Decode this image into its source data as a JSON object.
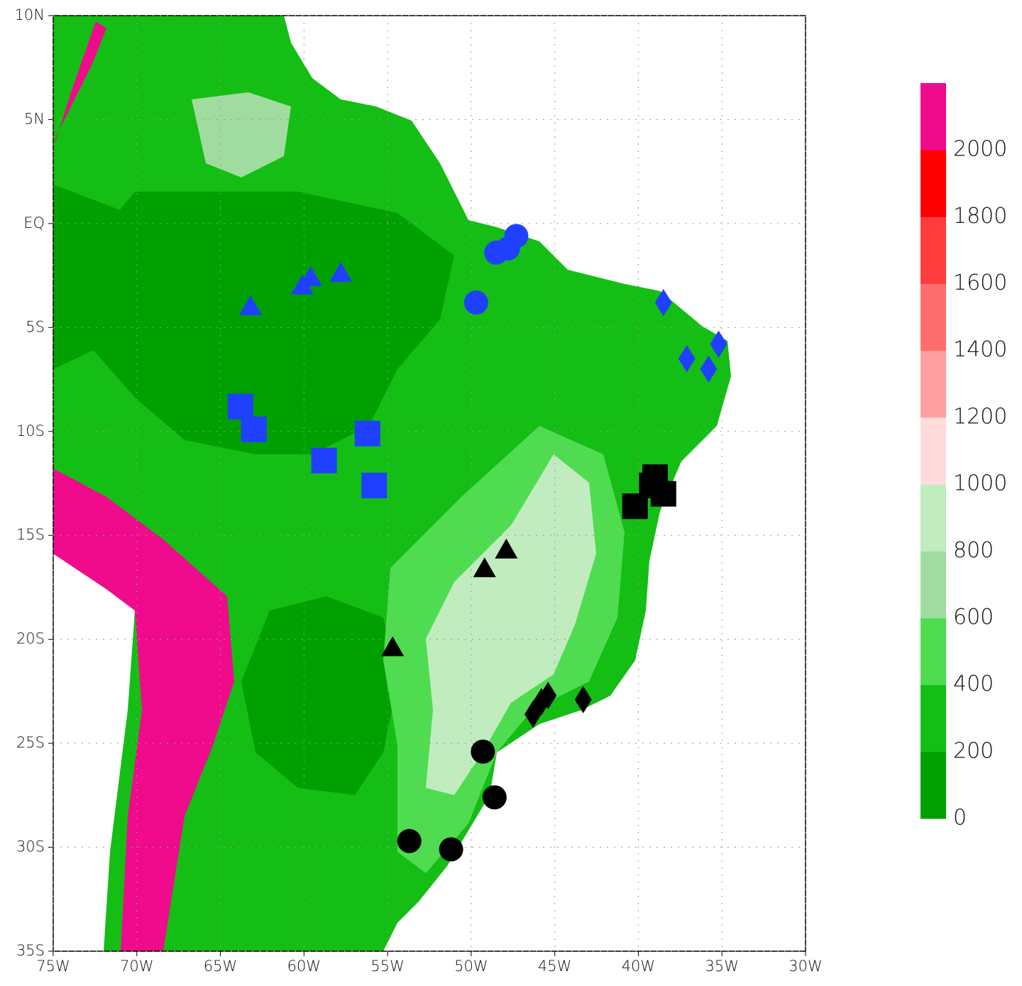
{
  "chart_data": {
    "type": "map",
    "xlim": [
      -75,
      -30
    ],
    "ylim": [
      -35,
      10
    ],
    "xticks": [
      {
        "value": -75,
        "label": "75W"
      },
      {
        "value": -70,
        "label": "70W"
      },
      {
        "value": -65,
        "label": "65W"
      },
      {
        "value": -60,
        "label": "60W"
      },
      {
        "value": -55,
        "label": "55W"
      },
      {
        "value": -50,
        "label": "50W"
      },
      {
        "value": -45,
        "label": "45W"
      },
      {
        "value": -40,
        "label": "40W"
      },
      {
        "value": -35,
        "label": "35W"
      },
      {
        "value": -30,
        "label": "30W"
      }
    ],
    "yticks": [
      {
        "value": 10,
        "label": "10N"
      },
      {
        "value": 5,
        "label": "5N"
      },
      {
        "value": 0,
        "label": "EQ"
      },
      {
        "value": -5,
        "label": "5S"
      },
      {
        "value": -10,
        "label": "10S"
      },
      {
        "value": -15,
        "label": "15S"
      },
      {
        "value": -20,
        "label": "20S"
      },
      {
        "value": -25,
        "label": "25S"
      },
      {
        "value": -30,
        "label": "30S"
      },
      {
        "value": -35,
        "label": "35S"
      }
    ],
    "grid": true,
    "colorbar": {
      "levels": [
        0,
        200,
        400,
        600,
        800,
        1000,
        1200,
        1400,
        1600,
        1800,
        2000
      ],
      "colors": [
        "#00a000",
        "#14be14",
        "#50dc50",
        "#a0dca0",
        "#c0ecc0",
        "#ffdcdc",
        "#ffa0a0",
        "#ff6e6e",
        "#ff3c3c",
        "#ff0000",
        "#f00a8c"
      ]
    },
    "series": [
      {
        "marker": "circle",
        "color": "#2040ff",
        "x": [
          -47.3,
          -47.8,
          -48.5,
          -49.7
        ],
        "y": [
          -0.6,
          -1.2,
          -1.4,
          -3.8
        ]
      },
      {
        "marker": "triangle",
        "color": "#2040ff",
        "x": [
          -63.2,
          -60.1,
          -59.6,
          -57.8
        ],
        "y": [
          -4.0,
          -3.0,
          -2.6,
          -2.4
        ]
      },
      {
        "marker": "square",
        "color": "#2040ff",
        "x": [
          -63.8,
          -63.0,
          -56.2,
          -58.8,
          -55.8
        ],
        "y": [
          -8.8,
          -9.9,
          -10.1,
          -11.4,
          -12.6
        ]
      },
      {
        "marker": "diamond",
        "color": "#2040ff",
        "x": [
          -38.5,
          -37.1,
          -35.2,
          -35.8
        ],
        "y": [
          -3.8,
          -6.5,
          -5.8,
          -7.0
        ]
      },
      {
        "marker": "square",
        "color": "#000000",
        "x": [
          -39.0,
          -38.5,
          -40.2,
          -39.2
        ],
        "y": [
          -12.2,
          -13.0,
          -13.6,
          -12.6
        ]
      },
      {
        "marker": "triangle",
        "color": "#000000",
        "x": [
          -47.9,
          -49.2,
          -54.7
        ],
        "y": [
          -15.7,
          -16.6,
          -20.4
        ]
      },
      {
        "marker": "diamond",
        "color": "#000000",
        "x": [
          -45.4,
          -45.8,
          -46.3,
          -43.3
        ],
        "y": [
          -22.7,
          -23.0,
          -23.6,
          -22.9
        ]
      },
      {
        "marker": "circle",
        "color": "#000000",
        "x": [
          -49.3,
          -48.6,
          -53.7,
          -51.2
        ],
        "y": [
          -25.4,
          -27.6,
          -29.7,
          -30.1
        ]
      }
    ]
  }
}
